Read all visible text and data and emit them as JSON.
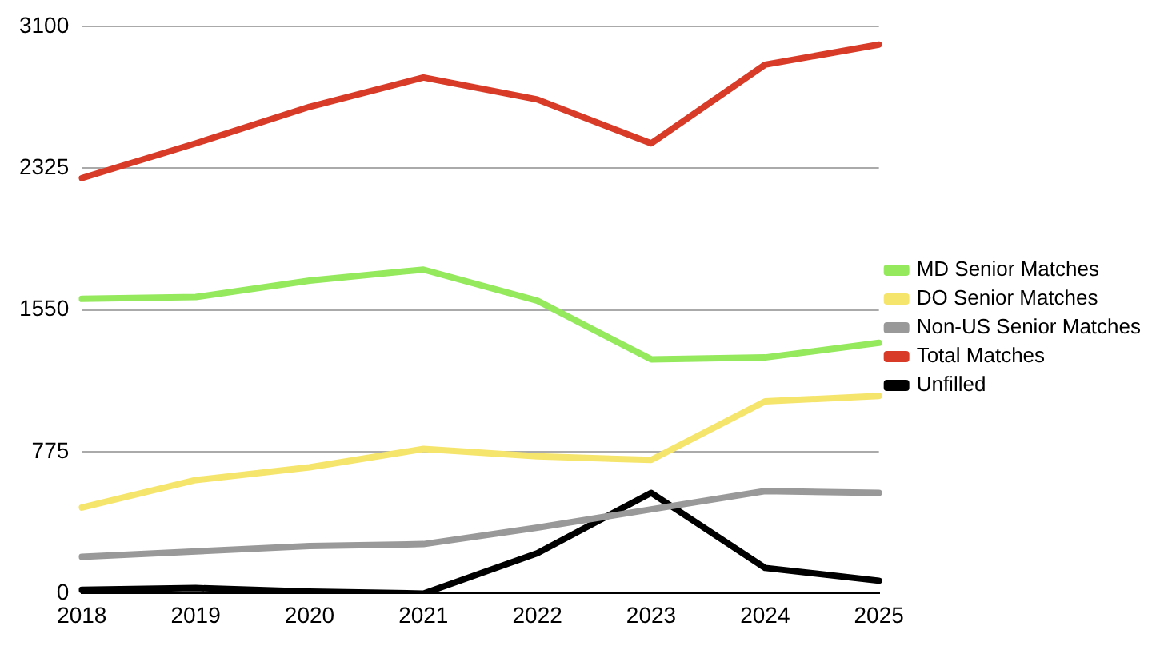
{
  "chart_data": {
    "type": "line",
    "categories": [
      "2018",
      "2019",
      "2020",
      "2021",
      "2022",
      "2023",
      "2024",
      "2025"
    ],
    "series": [
      {
        "name": "MD Senior Matches",
        "color": "#94e95c",
        "values": [
          1610,
          1620,
          1710,
          1770,
          1600,
          1280,
          1290,
          1370
        ]
      },
      {
        "name": "DO Senior Matches",
        "color": "#f6e56c",
        "values": [
          470,
          620,
          690,
          790,
          750,
          730,
          1050,
          1080
        ]
      },
      {
        "name": "Non-US Senior Matches",
        "color": "#999999",
        "values": [
          200,
          230,
          260,
          270,
          360,
          460,
          560,
          550
        ]
      },
      {
        "name": "Total Matches",
        "color": "#d83b28",
        "values": [
          2270,
          2460,
          2660,
          2820,
          2700,
          2460,
          2890,
          3000
        ]
      },
      {
        "name": "Unfilled",
        "color": "#000000",
        "values": [
          20,
          30,
          10,
          0,
          220,
          550,
          140,
          70
        ]
      }
    ],
    "ylim": [
      0,
      3100
    ],
    "yticks": [
      0,
      775,
      1550,
      2325,
      3100
    ],
    "grid": "y",
    "legend": "right",
    "marker": "none",
    "line_style": "solid"
  }
}
